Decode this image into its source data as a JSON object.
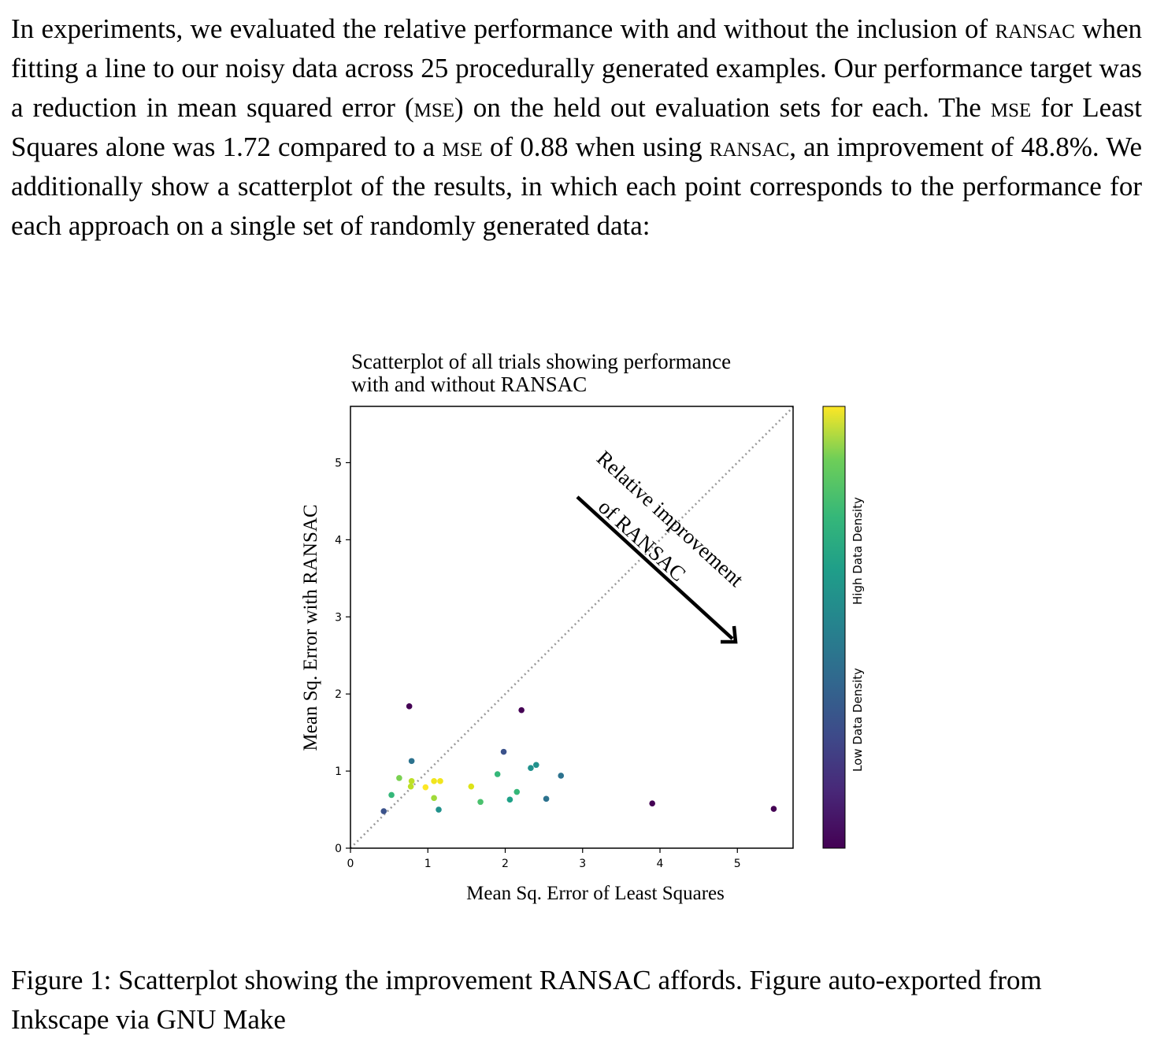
{
  "paragraph": {
    "p1": "In experiments, we evaluated the relative performance with and without the inclusion of ",
    "ransac": "RANSAC",
    "p2": " when fitting a line to our noisy data across 25 procedurally generated examples. Our performance target was a reduction in mean squared error (",
    "mse": "MSE",
    "p3": ") on the held out evaluation sets for each. The ",
    "p4": " for Least Squares alone was 1.72 compared to a ",
    "p5": " of 0.88 when using ",
    "p6": ", an improvement of 48.8%. We additionally show a scatterplot of the results, in which each point corresponds to the performance for each approach on a single set of randomly generated data:"
  },
  "caption": "Figure 1: Scatterplot showing the improvement RANSAC affords. Figure auto-exported from Inkscape via GNU Make",
  "chart_data": {
    "type": "scatter",
    "title_line1": "Scatterplot of all trials showing performance",
    "title_line2": "with and without RANSAC",
    "xlabel": "Mean Sq. Error of Least Squares",
    "ylabel": "Mean Sq. Error with RANSAC",
    "xlim": [
      0,
      5.72
    ],
    "ylim": [
      0,
      5.73
    ],
    "xticks": [
      "0",
      "1",
      "2",
      "3",
      "4",
      "5"
    ],
    "yticks": [
      "0",
      "1",
      "2",
      "3",
      "4",
      "5"
    ],
    "grid": false,
    "diagonal_reference_line": "y = x (dotted grey)",
    "annotation_line1": "Relative improvement",
    "annotation_line2": "of RANSAC",
    "colorbar": {
      "colormap": "viridis",
      "label_low": "Low Data Density",
      "label_high": "High Data Density"
    },
    "points": [
      {
        "x": 0.76,
        "y": 1.84,
        "color": "#440154"
      },
      {
        "x": 2.21,
        "y": 1.79,
        "color": "#440154"
      },
      {
        "x": 1.98,
        "y": 1.25,
        "color": "#3b528b"
      },
      {
        "x": 0.79,
        "y": 1.13,
        "color": "#2c728e"
      },
      {
        "x": 0.63,
        "y": 0.91,
        "color": "#7ad151"
      },
      {
        "x": 0.79,
        "y": 0.87,
        "color": "#bddf26"
      },
      {
        "x": 0.78,
        "y": 0.8,
        "color": "#bddf26"
      },
      {
        "x": 0.97,
        "y": 0.79,
        "color": "#fde725"
      },
      {
        "x": 1.08,
        "y": 0.87,
        "color": "#f1e51d"
      },
      {
        "x": 1.16,
        "y": 0.87,
        "color": "#f1e51d"
      },
      {
        "x": 0.53,
        "y": 0.69,
        "color": "#35b779"
      },
      {
        "x": 0.43,
        "y": 0.48,
        "color": "#3b528b"
      },
      {
        "x": 1.08,
        "y": 0.65,
        "color": "#a0da39"
      },
      {
        "x": 1.14,
        "y": 0.5,
        "color": "#21918c"
      },
      {
        "x": 1.56,
        "y": 0.8,
        "color": "#dde318"
      },
      {
        "x": 1.68,
        "y": 0.6,
        "color": "#4ac16d"
      },
      {
        "x": 1.9,
        "y": 0.96,
        "color": "#35b779"
      },
      {
        "x": 2.06,
        "y": 0.63,
        "color": "#1fa187"
      },
      {
        "x": 2.15,
        "y": 0.73,
        "color": "#35b779"
      },
      {
        "x": 2.33,
        "y": 1.04,
        "color": "#21918c"
      },
      {
        "x": 2.4,
        "y": 1.08,
        "color": "#21918c"
      },
      {
        "x": 2.72,
        "y": 0.94,
        "color": "#2c728e"
      },
      {
        "x": 2.53,
        "y": 0.64,
        "color": "#2c728e"
      },
      {
        "x": 3.9,
        "y": 0.58,
        "color": "#440154"
      },
      {
        "x": 5.47,
        "y": 0.51,
        "color": "#440154"
      }
    ]
  }
}
